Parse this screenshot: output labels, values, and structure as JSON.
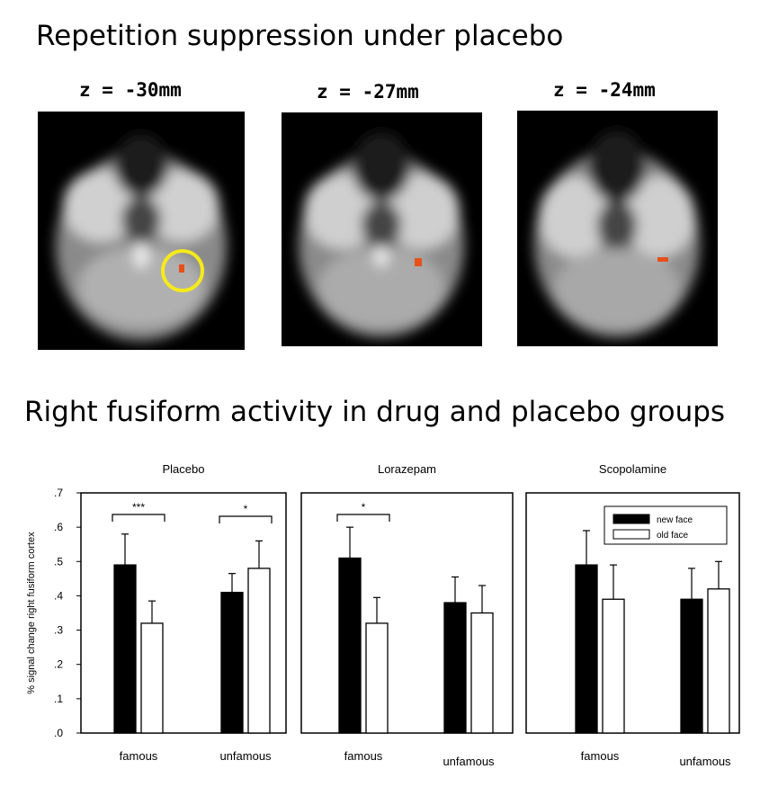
{
  "figure": {
    "top_heading": "Repetition suppression under placebo",
    "bottom_heading": "Right fusiform activity in drug and placebo groups"
  },
  "scans": [
    {
      "label": "z = -30mm",
      "highlight": "yellow-circle"
    },
    {
      "label": "z = -27mm"
    },
    {
      "label": "z = -24mm"
    }
  ],
  "colors": {
    "new_face": "#000000",
    "old_face": "#ffffff",
    "activation": "#e8501a",
    "highlight_circle": "#f5ea1c"
  },
  "chart_data": [
    {
      "type": "bar",
      "title": "Placebo",
      "ylabel": "% signal change right fusiform cortex",
      "categories": [
        "famous",
        "unfamous"
      ],
      "series": [
        {
          "name": "new face",
          "values": [
            0.49,
            0.41
          ],
          "errors": [
            0.09,
            0.055
          ]
        },
        {
          "name": "old face",
          "values": [
            0.32,
            0.48
          ],
          "errors": [
            0.065,
            0.08
          ]
        }
      ],
      "ylim": [
        0,
        0.7
      ],
      "yticks": [
        ".0",
        ".1",
        ".2",
        ".3",
        ".4",
        ".5",
        ".6",
        ".7"
      ],
      "significance": [
        {
          "category": "famous",
          "label": "***"
        },
        {
          "category": "unfamous",
          "label": "*"
        }
      ]
    },
    {
      "type": "bar",
      "title": "Lorazepam",
      "categories": [
        "famous",
        "unfamous"
      ],
      "series": [
        {
          "name": "new face",
          "values": [
            0.51,
            0.38
          ],
          "errors": [
            0.09,
            0.075
          ]
        },
        {
          "name": "old face",
          "values": [
            0.32,
            0.35
          ],
          "errors": [
            0.075,
            0.08
          ]
        }
      ],
      "ylim": [
        0,
        0.7
      ],
      "significance": [
        {
          "category": "famous",
          "label": "*"
        }
      ]
    },
    {
      "type": "bar",
      "title": "Scopolamine",
      "categories": [
        "famous",
        "unfamous"
      ],
      "series": [
        {
          "name": "new face",
          "values": [
            0.49,
            0.39
          ],
          "errors": [
            0.1,
            0.09
          ]
        },
        {
          "name": "old face",
          "values": [
            0.39,
            0.42
          ],
          "errors": [
            0.1,
            0.08
          ]
        }
      ],
      "ylim": [
        0,
        0.7
      ],
      "legend": {
        "placement": "top-right",
        "entries": [
          "new face",
          "old  face"
        ]
      }
    }
  ]
}
